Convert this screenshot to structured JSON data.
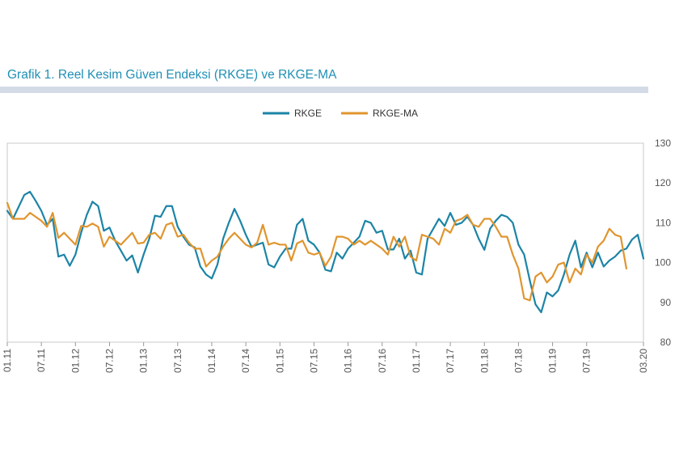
{
  "page": {
    "title": "Grafik 1. Reel Kesim Güven Endeksi (RKGE) ve RKGE-MA"
  },
  "chart_data": {
    "type": "line",
    "title": "Grafik 1. Reel Kesim Güven Endeksi (RKGE) ve RKGE-MA",
    "xlabel": "",
    "ylabel": "",
    "ylim": [
      80,
      130
    ],
    "y_ticks": [
      80,
      90,
      100,
      110,
      120,
      130
    ],
    "y_axis_side": "right",
    "grid": "none",
    "legend_position": "top-center",
    "x_start": "01.11",
    "x_end": "03.20",
    "x_tick_labels": [
      "01.11",
      "07.11",
      "01.12",
      "07.12",
      "01.13",
      "07.13",
      "01.14",
      "07.14",
      "01.15",
      "07.15",
      "01.16",
      "07.16",
      "01.17",
      "07.17",
      "01.18",
      "07.18",
      "01.19",
      "07.19",
      "03.20"
    ],
    "series": [
      {
        "name": "RKGE",
        "color": "#1c84a6",
        "values": [
          113,
          111,
          114,
          117,
          117.8,
          115.5,
          113,
          109.5,
          111,
          101.5,
          102,
          99.2,
          102,
          107.5,
          112,
          115.3,
          114.2,
          108,
          108.8,
          105.5,
          103,
          100.5,
          101.8,
          97.5,
          102,
          106,
          111.8,
          111.5,
          114.2,
          114.2,
          109,
          106.5,
          104.5,
          103.8,
          99,
          97,
          96,
          99.5,
          106,
          110,
          113.5,
          110.5,
          107,
          104,
          104.5,
          105,
          99.5,
          98.8,
          101.5,
          103.5,
          103.5,
          109.5,
          111,
          105.5,
          104.5,
          102.5,
          98.2,
          97.8,
          102.5,
          101,
          103.5,
          105,
          106.5,
          110.5,
          110,
          107.5,
          108,
          103.3,
          103.3,
          106,
          101,
          103,
          97.5,
          97,
          106,
          108.5,
          111,
          109.2,
          112.5,
          109.5,
          110,
          111.5,
          109.5,
          106,
          103.2,
          108.5,
          110.5,
          112,
          111.5,
          110,
          104.5,
          102,
          95.5,
          89.5,
          87.5,
          92.5,
          91.5,
          93,
          97,
          102,
          105.5,
          98.8,
          102.5,
          98.8,
          102.5,
          99,
          100.5,
          101.5,
          103,
          103.5,
          105.8,
          107,
          101
        ],
        "width": 2.2
      },
      {
        "name": "RKGE-MA",
        "color": "#e0952e",
        "values": [
          115,
          111,
          111,
          111,
          112.5,
          111.5,
          110.5,
          109,
          112.5,
          106.2,
          107.5,
          106,
          104.5,
          109.2,
          109,
          109.8,
          109,
          104,
          106.5,
          105.5,
          104.5,
          106,
          107.5,
          104.8,
          105,
          107,
          107.5,
          106,
          109.5,
          110,
          106.5,
          107,
          105,
          103.5,
          103.5,
          99,
          100.5,
          101.5,
          104,
          106,
          107.5,
          106,
          104.5,
          103.8,
          105,
          109.5,
          104.5,
          105,
          104.5,
          104.5,
          100.5,
          104.8,
          105.5,
          102.5,
          102,
          102.5,
          99.2,
          101.5,
          106.5,
          106.5,
          106,
          104.5,
          105.5,
          104.5,
          105.5,
          104.5,
          103.5,
          102,
          106.5,
          104,
          106.5,
          101.5,
          100.5,
          107,
          106.5,
          106,
          104.5,
          108.5,
          107.5,
          110.5,
          111,
          112,
          109.5,
          109,
          111,
          111,
          109,
          106.5,
          106.5,
          102,
          98.5,
          91,
          90.5,
          96.5,
          97.5,
          95,
          96.5,
          99.5,
          100,
          95,
          98.5,
          97,
          102,
          100,
          104,
          105.5,
          108.5,
          107,
          106.5,
          98.5
        ],
        "width": 2.2
      }
    ]
  }
}
